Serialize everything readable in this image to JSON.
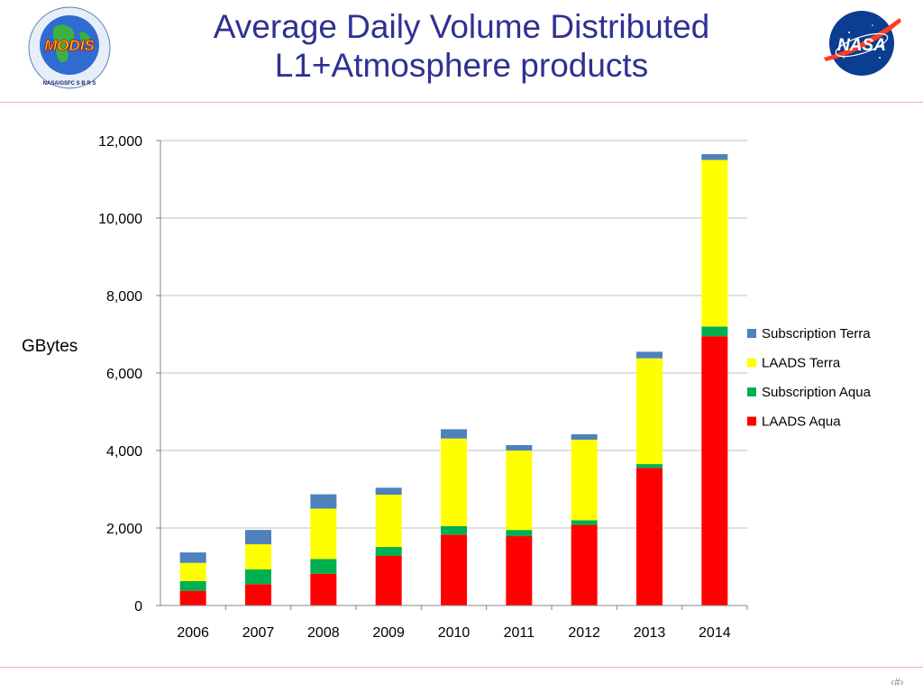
{
  "slide": {
    "title_line1": "Average Daily Volume Distributed",
    "title_line2": "L1+Atmosphere products",
    "page_number": "‹#›",
    "logos": {
      "left": {
        "name": "modis-logo",
        "text": "MODIS",
        "ring_text": "NASA/GSFC  S B R S"
      },
      "right": {
        "name": "nasa-logo",
        "text": "NASA"
      }
    }
  },
  "chart_data": {
    "type": "bar",
    "stacked": true,
    "title": "",
    "xlabel": "",
    "ylabel": "GBytes",
    "ylim": [
      0,
      12000
    ],
    "yticks": [
      0,
      2000,
      4000,
      6000,
      8000,
      10000,
      12000
    ],
    "ytick_labels": [
      "0",
      "2,000",
      "4,000",
      "6,000",
      "8,000",
      "10,000",
      "12,000"
    ],
    "grid": true,
    "legend_position": "right",
    "categories": [
      "2006",
      "2007",
      "2008",
      "2009",
      "2010",
      "2011",
      "2012",
      "2013",
      "2014"
    ],
    "series": [
      {
        "name": "LAADS Aqua",
        "color": "#ff0000",
        "values": [
          380,
          550,
          820,
          1280,
          1830,
          1790,
          2080,
          3550,
          6950
        ]
      },
      {
        "name": "Subscription Aqua",
        "color": "#00b050",
        "values": [
          250,
          380,
          380,
          230,
          220,
          160,
          120,
          100,
          250
        ]
      },
      {
        "name": "LAADS Terra",
        "color": "#ffff00",
        "values": [
          470,
          650,
          1300,
          1350,
          2260,
          2050,
          2080,
          2730,
          4300
        ]
      },
      {
        "name": "Subscription Terra",
        "color": "#4f81bd",
        "values": [
          270,
          370,
          370,
          180,
          240,
          140,
          140,
          170,
          150
        ]
      }
    ]
  }
}
